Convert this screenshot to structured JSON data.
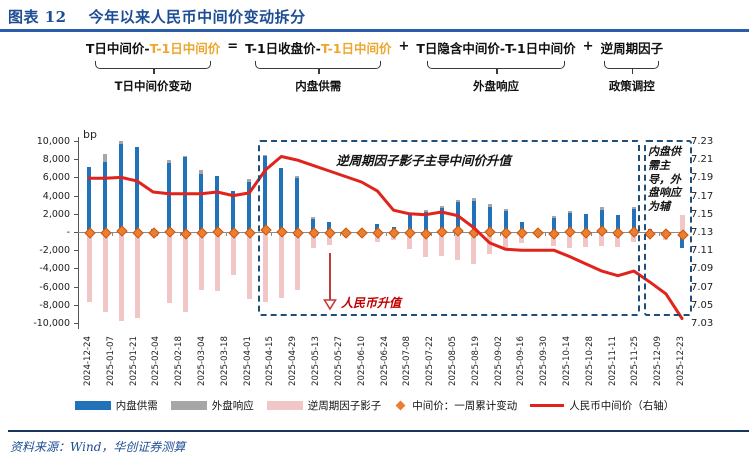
{
  "header": {
    "tag": "图表 12",
    "title": "今年以来人民币中间价变动拆分"
  },
  "formula": {
    "g1_black": "T日中间价-",
    "g1_orange": "T-1日中间价",
    "op_eq": "=",
    "g2_black": "T-1日收盘价-",
    "g2_orange": "T-1日中间价",
    "op_plus1": "+",
    "g3_black": "T日隐含中间价-T-1日中间价",
    "op_plus2": "+",
    "g4_black": "逆周期因子",
    "groups": [
      "T日中间价变动",
      "内盘供需",
      "外盘响应",
      "政策调控"
    ]
  },
  "chart_data": {
    "type": "combo: stacked bar + scatter + line (dual axis)",
    "unit_left": "bp",
    "ylim_left": [
      -10000,
      10000
    ],
    "left_ticks": [
      "10,000",
      "8,000",
      "6,000",
      "4,000",
      "2,000",
      "-",
      "-2,000",
      "-4,000",
      "-6,000",
      "-8,000",
      "-10,000"
    ],
    "ylim_right": [
      7.03,
      7.23
    ],
    "right_ticks": [
      "7.23",
      "7.21",
      "7.19",
      "7.17",
      "7.15",
      "7.13",
      "7.11",
      "7.09",
      "7.07",
      "7.05",
      "7.03"
    ],
    "x_labels": [
      "2024-12-24",
      "2025-01-07",
      "2025-01-21",
      "2025-02-04",
      "2025-02-18",
      "2025-03-04",
      "2025-03-18",
      "2025-04-01",
      "2025-04-15",
      "2025-04-29",
      "2025-05-13",
      "2025-05-27",
      "2025-06-10",
      "2025-06-24",
      "2025-07-08",
      "2025-07-22",
      "2025-08-05",
      "2025-08-19",
      "2025-09-02",
      "2025-09-16",
      "2025-09-30",
      "2025-10-14",
      "2025-10-28",
      "2025-11-11",
      "2025-11-25",
      "2025-12-09",
      "2025-12-23"
    ],
    "grid": "zero axis line only",
    "legend_position": "bottom",
    "series": {
      "neipan": {
        "name": "内盘供需",
        "type": "bar",
        "axis": "left",
        "color": "#2272ba",
        "values": [
          7100,
          7700,
          9700,
          9300,
          300,
          7600,
          8200,
          6400,
          6100,
          4500,
          5500,
          8300,
          7000,
          5900,
          1450,
          1050,
          250,
          150,
          900,
          550,
          1850,
          2200,
          2600,
          3300,
          3400,
          2750,
          2300,
          1100,
          250,
          1500,
          2100,
          2000,
          2400,
          1900,
          2500,
          300,
          200,
          -1750
        ]
      },
      "waipan": {
        "name": "外盘响应",
        "type": "bar-stacked-cap",
        "axis": "left",
        "color": "#a6a6a6",
        "values": [
          0,
          900,
          300,
          0,
          0,
          300,
          200,
          400,
          0,
          0,
          300,
          200,
          0,
          200,
          150,
          0,
          0,
          0,
          0,
          0,
          0,
          200,
          250,
          250,
          350,
          300,
          200,
          0,
          0,
          300,
          250,
          0,
          300,
          0,
          200,
          0,
          0,
          0
        ]
      },
      "nizhouqi": {
        "name": "逆周期因子影子",
        "type": "bar",
        "axis": "left",
        "color": "#f0c6c6",
        "values": [
          -7650,
          -8750,
          -9800,
          -9400,
          -400,
          -7800,
          -8750,
          -6400,
          -6500,
          -4700,
          -7400,
          -7700,
          -7200,
          -6400,
          -1800,
          -1450,
          -350,
          -250,
          -1100,
          -850,
          -1850,
          -2750,
          -2600,
          -3100,
          -3500,
          -2400,
          -2000,
          -1200,
          -300,
          -1500,
          -1800,
          -1700,
          -1500,
          -1600,
          -1100,
          -500,
          -900,
          1900
        ]
      },
      "dots": {
        "name": "中间价：一周累计变动",
        "type": "scatter",
        "axis": "left",
        "color": "#ed7d31",
        "values": [
          0,
          -100,
          150,
          -100,
          0,
          100,
          -150,
          0,
          100,
          -100,
          0,
          300,
          100,
          -100,
          0,
          0,
          0,
          0,
          -100,
          0,
          0,
          -150,
          100,
          150,
          -100,
          100,
          0,
          0,
          0,
          -150,
          100,
          0,
          150,
          -100,
          100,
          -150,
          -200,
          -300
        ]
      },
      "fixing": {
        "name": "人民币中间价（右轴）",
        "type": "line",
        "axis": "right",
        "color": "#e0231c",
        "values": [
          7.189,
          7.189,
          7.19,
          7.186,
          7.174,
          7.172,
          7.172,
          7.172,
          7.174,
          7.17,
          7.173,
          7.198,
          7.213,
          7.209,
          7.203,
          7.197,
          7.191,
          7.185,
          7.175,
          7.154,
          7.15,
          7.149,
          7.152,
          7.148,
          7.135,
          7.118,
          7.111,
          7.11,
          7.11,
          7.11,
          7.103,
          7.095,
          7.087,
          7.082,
          7.087,
          7.075,
          7.062,
          7.035
        ]
      }
    },
    "annotations": {
      "unit_label": "bp",
      "box1_label": "逆周期因子影子主导中间价升值",
      "box2_label": "内盘供需主导，外盘响应为辅",
      "arrow_label": "人民币升值"
    }
  },
  "legend": [
    {
      "swatch": "bar",
      "color": "#2272ba",
      "label": "内盘供需"
    },
    {
      "swatch": "bar",
      "color": "#a6a6a6",
      "label": "外盘响应"
    },
    {
      "swatch": "bar",
      "color": "#f0c6c6",
      "label": "逆周期因子影子"
    },
    {
      "swatch": "diamond",
      "color": "#ed7d31",
      "label": "中间价：一周累计变动"
    },
    {
      "swatch": "line",
      "color": "#e0231c",
      "label": "人民币中间价（右轴）"
    }
  ],
  "source": "资料来源：Wind，华创证券测算"
}
